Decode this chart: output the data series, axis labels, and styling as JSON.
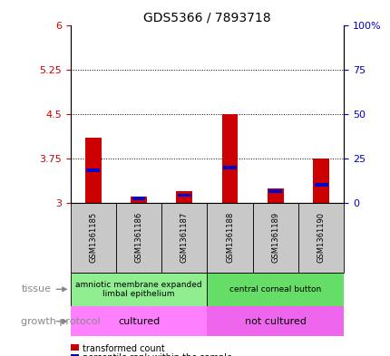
{
  "title": "GDS5366 / 7893718",
  "samples": [
    "GSM1361185",
    "GSM1361186",
    "GSM1361187",
    "GSM1361188",
    "GSM1361189",
    "GSM1361190"
  ],
  "red_values": [
    4.1,
    3.1,
    3.2,
    4.5,
    3.25,
    3.75
  ],
  "blue_values": [
    3.55,
    3.08,
    3.13,
    3.6,
    3.2,
    3.3
  ],
  "ylim": [
    3.0,
    6.0
  ],
  "yticks_left": [
    3,
    3.75,
    4.5,
    5.25,
    6
  ],
  "ytick_labels_left": [
    "3",
    "3.75",
    "4.5",
    "5.25",
    "6"
  ],
  "ytick_labels_right": [
    "0",
    "25",
    "50",
    "75",
    "100%"
  ],
  "grid_values": [
    3.75,
    4.5,
    5.25
  ],
  "tissue_labels": [
    "amniotic membrane expanded\nlimbal epithelium",
    "central corneal button"
  ],
  "growth_labels": [
    "cultured",
    "not cultured"
  ],
  "tissue_colors": [
    "#90EE90",
    "#66DD66"
  ],
  "growth_colors": [
    "#FF80FF",
    "#EE66EE"
  ],
  "bar_color_red": "#CC0000",
  "bar_color_blue": "#0000CC",
  "bar_width": 0.35,
  "background_color": "#ffffff",
  "axis_color_left": "#CC0000",
  "axis_color_right": "#0000CC",
  "sample_box_color": "#C8C8C8",
  "label_color": "#888888"
}
